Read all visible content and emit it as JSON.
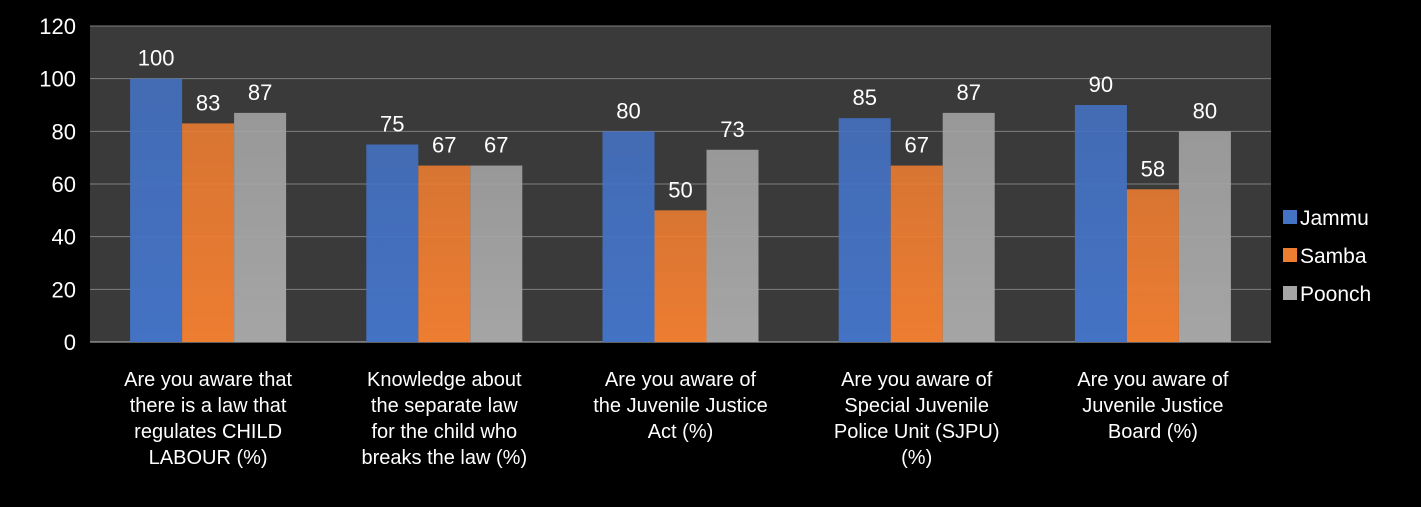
{
  "chart_data": {
    "type": "bar",
    "categories": [
      [
        "Are you aware that",
        "there is a law that",
        "regulates CHILD",
        "LABOUR (%)"
      ],
      [
        "Knowledge about",
        "the separate law",
        "for the  child who",
        "breaks the law  (%)"
      ],
      [
        "Are you aware of",
        "the Juvenile Justice",
        "Act  (%)"
      ],
      [
        "Are you aware of",
        "Special Juvenile",
        "Police Unit (SJPU)",
        "(%)"
      ],
      [
        "Are you aware of",
        "Juvenile Justice",
        "Board  (%)"
      ]
    ],
    "series": [
      {
        "name": "Jammu",
        "values": [
          100,
          75,
          80,
          85,
          90
        ],
        "color": "#4472c4"
      },
      {
        "name": "Samba",
        "values": [
          83,
          67,
          50,
          67,
          58
        ],
        "color": "#ed7d31"
      },
      {
        "name": "Poonch",
        "values": [
          87,
          67,
          73,
          87,
          80
        ],
        "color": "#a5a5a5"
      }
    ],
    "ylim": [
      0,
      120
    ],
    "yticks": [
      0,
      20,
      40,
      60,
      80,
      100,
      120
    ],
    "grid": true,
    "legend": "right",
    "plot_background": "#3a3a3a",
    "gridline_color": "#7f7f7f",
    "title": "",
    "xlabel": "",
    "ylabel": ""
  }
}
